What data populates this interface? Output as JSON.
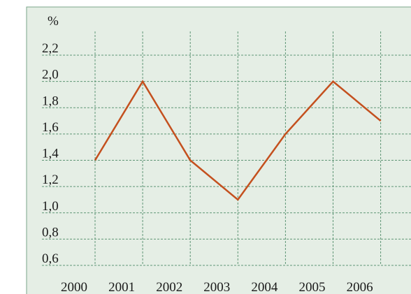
{
  "chart_data": {
    "type": "line",
    "y_label": "%",
    "categories": [
      "2000",
      "2001",
      "2002",
      "2003",
      "2004",
      "2005",
      "2006"
    ],
    "series": [
      {
        "name": null,
        "color": "#c4501e",
        "values": [
          1.4,
          2.0,
          1.4,
          1.1,
          1.6,
          2.0,
          1.7
        ]
      }
    ],
    "ylim": [
      0.6,
      2.2
    ],
    "yticks": [
      {
        "value": 0.6,
        "label": "0,6"
      },
      {
        "value": 0.8,
        "label": "0,8"
      },
      {
        "value": 1.0,
        "label": "1,0"
      },
      {
        "value": 1.2,
        "label": "1,2"
      },
      {
        "value": 1.4,
        "label": "1,4"
      },
      {
        "value": 1.6,
        "label": "1,6"
      },
      {
        "value": 1.8,
        "label": "1,8"
      },
      {
        "value": 2.0,
        "label": "2,0"
      },
      {
        "value": 2.2,
        "label": "2,2"
      }
    ],
    "grid": true
  }
}
